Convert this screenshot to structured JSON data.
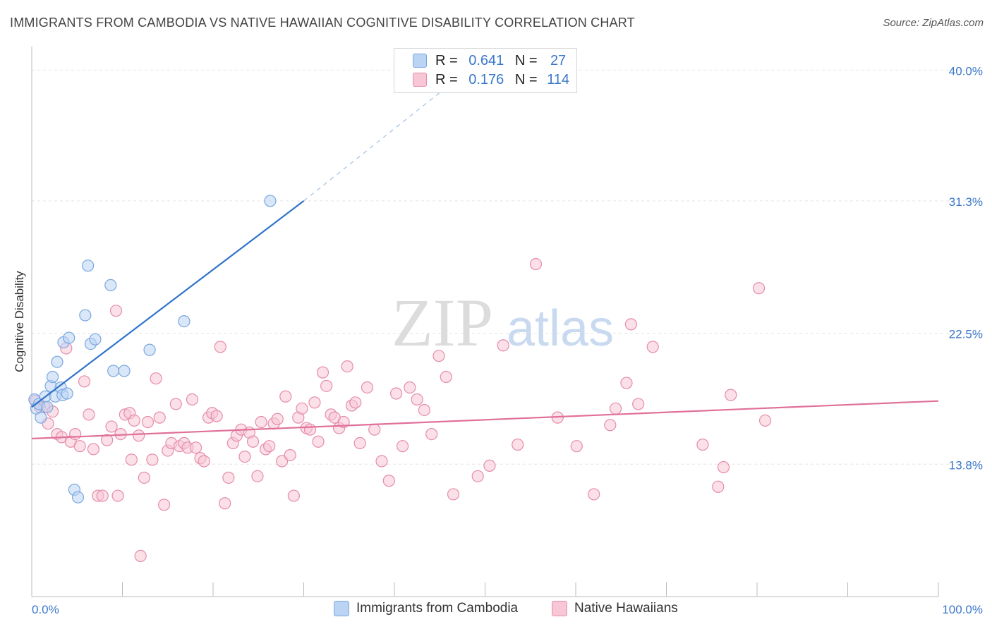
{
  "title": "IMMIGRANTS FROM CAMBODIA VS NATIVE HAWAIIAN COGNITIVE DISABILITY CORRELATION CHART",
  "source": "Source: ZipAtlas.com",
  "watermark": {
    "zip": "ZIP",
    "atlas": "atlas"
  },
  "legend": {
    "r_label": "R =",
    "n_label": "N =",
    "series": [
      {
        "r": "0.641",
        "n": "27"
      },
      {
        "r": "0.176",
        "n": "114"
      }
    ]
  },
  "chart_data": {
    "type": "scatter",
    "title": "IMMIGRANTS FROM CAMBODIA VS NATIVE HAWAIIAN COGNITIVE DISABILITY CORRELATION CHART",
    "xlabel": "",
    "ylabel": "Cognitive Disability",
    "xlim": [
      0,
      100
    ],
    "ylim": [
      5,
      41
    ],
    "x_tick_labels": [
      "0.0%",
      "100.0%"
    ],
    "y_ticks": [
      13.8,
      22.5,
      31.3,
      40.0
    ],
    "y_tick_labels": [
      "13.8%",
      "22.5%",
      "31.3%",
      "40.0%"
    ],
    "series": [
      {
        "name": "Immigrants from Cambodia",
        "color": "#7aa7e0",
        "fill": "#bcd4f3",
        "line_color": "#2f73c9",
        "trend": {
          "x0": 0,
          "y0": 17.6,
          "x1": 30,
          "y1": 31.3,
          "dash_x1": 45,
          "dash_y1": 38.5
        },
        "points": [
          [
            0.3,
            18.1
          ],
          [
            0.5,
            17.5
          ],
          [
            0.8,
            17.8
          ],
          [
            1.0,
            16.9
          ],
          [
            1.5,
            18.3
          ],
          [
            1.7,
            17.6
          ],
          [
            2.1,
            19.0
          ],
          [
            2.3,
            19.6
          ],
          [
            2.6,
            18.3
          ],
          [
            2.8,
            20.6
          ],
          [
            3.2,
            18.9
          ],
          [
            3.4,
            18.4
          ],
          [
            3.5,
            21.9
          ],
          [
            3.9,
            18.5
          ],
          [
            4.1,
            22.2
          ],
          [
            4.7,
            12.1
          ],
          [
            5.1,
            11.6
          ],
          [
            5.9,
            23.7
          ],
          [
            6.2,
            27.0
          ],
          [
            6.5,
            21.8
          ],
          [
            7.0,
            22.1
          ],
          [
            8.7,
            25.7
          ],
          [
            9.0,
            20.0
          ],
          [
            10.2,
            20.0
          ],
          [
            13.0,
            21.4
          ],
          [
            16.8,
            23.3
          ],
          [
            26.3,
            31.3
          ]
        ]
      },
      {
        "name": "Native Hawaiians",
        "color": "#e58cab",
        "fill": "#f7c7d6",
        "line_color": "#e0709a",
        "trend": {
          "x0": 0,
          "y0": 15.5,
          "x1": 100,
          "y1": 18.0
        },
        "points": [
          [
            0.4,
            18.0
          ],
          [
            0.9,
            17.6
          ],
          [
            1.4,
            17.6
          ],
          [
            1.8,
            16.5
          ],
          [
            2.3,
            17.3
          ],
          [
            2.8,
            15.8
          ],
          [
            3.3,
            15.6
          ],
          [
            3.8,
            21.5
          ],
          [
            4.3,
            15.3
          ],
          [
            4.8,
            15.8
          ],
          [
            5.3,
            15.0
          ],
          [
            5.8,
            19.3
          ],
          [
            6.3,
            17.1
          ],
          [
            6.8,
            14.8
          ],
          [
            7.3,
            11.7
          ],
          [
            7.8,
            11.7
          ],
          [
            8.3,
            15.4
          ],
          [
            8.8,
            16.3
          ],
          [
            9.3,
            24.0
          ],
          [
            9.5,
            11.7
          ],
          [
            9.8,
            15.8
          ],
          [
            10.3,
            17.1
          ],
          [
            10.8,
            17.2
          ],
          [
            11.0,
            14.1
          ],
          [
            11.3,
            16.7
          ],
          [
            11.8,
            15.7
          ],
          [
            12.0,
            7.7
          ],
          [
            12.4,
            12.9
          ],
          [
            12.8,
            16.6
          ],
          [
            13.3,
            14.1
          ],
          [
            13.7,
            19.5
          ],
          [
            14.1,
            16.9
          ],
          [
            14.6,
            11.1
          ],
          [
            15.0,
            14.7
          ],
          [
            15.4,
            15.2
          ],
          [
            15.9,
            17.8
          ],
          [
            16.3,
            15.0
          ],
          [
            16.8,
            15.2
          ],
          [
            17.2,
            14.9
          ],
          [
            17.7,
            18.1
          ],
          [
            18.1,
            14.9
          ],
          [
            18.6,
            14.2
          ],
          [
            19.0,
            14.0
          ],
          [
            19.5,
            16.9
          ],
          [
            19.9,
            17.2
          ],
          [
            20.4,
            17.0
          ],
          [
            20.8,
            21.6
          ],
          [
            21.3,
            11.2
          ],
          [
            21.7,
            12.9
          ],
          [
            22.2,
            15.2
          ],
          [
            22.6,
            15.7
          ],
          [
            23.1,
            16.1
          ],
          [
            23.5,
            14.3
          ],
          [
            24.0,
            15.9
          ],
          [
            24.4,
            15.3
          ],
          [
            24.9,
            13.0
          ],
          [
            25.3,
            16.6
          ],
          [
            25.8,
            14.8
          ],
          [
            26.2,
            15.0
          ],
          [
            26.7,
            16.5
          ],
          [
            27.1,
            16.8
          ],
          [
            27.6,
            14.0
          ],
          [
            28.0,
            18.3
          ],
          [
            28.5,
            14.4
          ],
          [
            28.9,
            11.7
          ],
          [
            29.4,
            16.9
          ],
          [
            29.8,
            17.5
          ],
          [
            30.3,
            16.2
          ],
          [
            30.7,
            16.1
          ],
          [
            31.2,
            17.9
          ],
          [
            31.6,
            15.3
          ],
          [
            32.1,
            19.9
          ],
          [
            32.5,
            19.0
          ],
          [
            33.0,
            17.1
          ],
          [
            33.4,
            16.9
          ],
          [
            33.9,
            16.2
          ],
          [
            34.4,
            16.6
          ],
          [
            34.8,
            20.3
          ],
          [
            35.3,
            17.7
          ],
          [
            35.7,
            17.9
          ],
          [
            36.2,
            15.2
          ],
          [
            37.0,
            18.9
          ],
          [
            37.8,
            16.1
          ],
          [
            38.6,
            14.0
          ],
          [
            39.4,
            12.7
          ],
          [
            40.2,
            18.5
          ],
          [
            40.9,
            15.0
          ],
          [
            41.7,
            18.9
          ],
          [
            42.5,
            18.1
          ],
          [
            43.3,
            17.4
          ],
          [
            44.1,
            15.8
          ],
          [
            44.9,
            21.0
          ],
          [
            45.7,
            19.6
          ],
          [
            46.5,
            11.8
          ],
          [
            49.2,
            13.0
          ],
          [
            50.5,
            13.7
          ],
          [
            52.0,
            21.7
          ],
          [
            53.6,
            15.1
          ],
          [
            55.6,
            27.1
          ],
          [
            58.0,
            16.9
          ],
          [
            60.1,
            15.0
          ],
          [
            62.0,
            11.8
          ],
          [
            63.8,
            16.4
          ],
          [
            64.4,
            17.5
          ],
          [
            65.6,
            19.2
          ],
          [
            66.1,
            23.1
          ],
          [
            66.9,
            17.8
          ],
          [
            68.5,
            21.6
          ],
          [
            74.0,
            15.1
          ],
          [
            75.7,
            12.3
          ],
          [
            76.3,
            13.6
          ],
          [
            77.1,
            18.4
          ],
          [
            80.2,
            25.5
          ],
          [
            80.9,
            16.7
          ]
        ]
      }
    ]
  },
  "bottom_legend": [
    {
      "label": "Immigrants from Cambodia"
    },
    {
      "label": "Native Hawaiians"
    }
  ]
}
